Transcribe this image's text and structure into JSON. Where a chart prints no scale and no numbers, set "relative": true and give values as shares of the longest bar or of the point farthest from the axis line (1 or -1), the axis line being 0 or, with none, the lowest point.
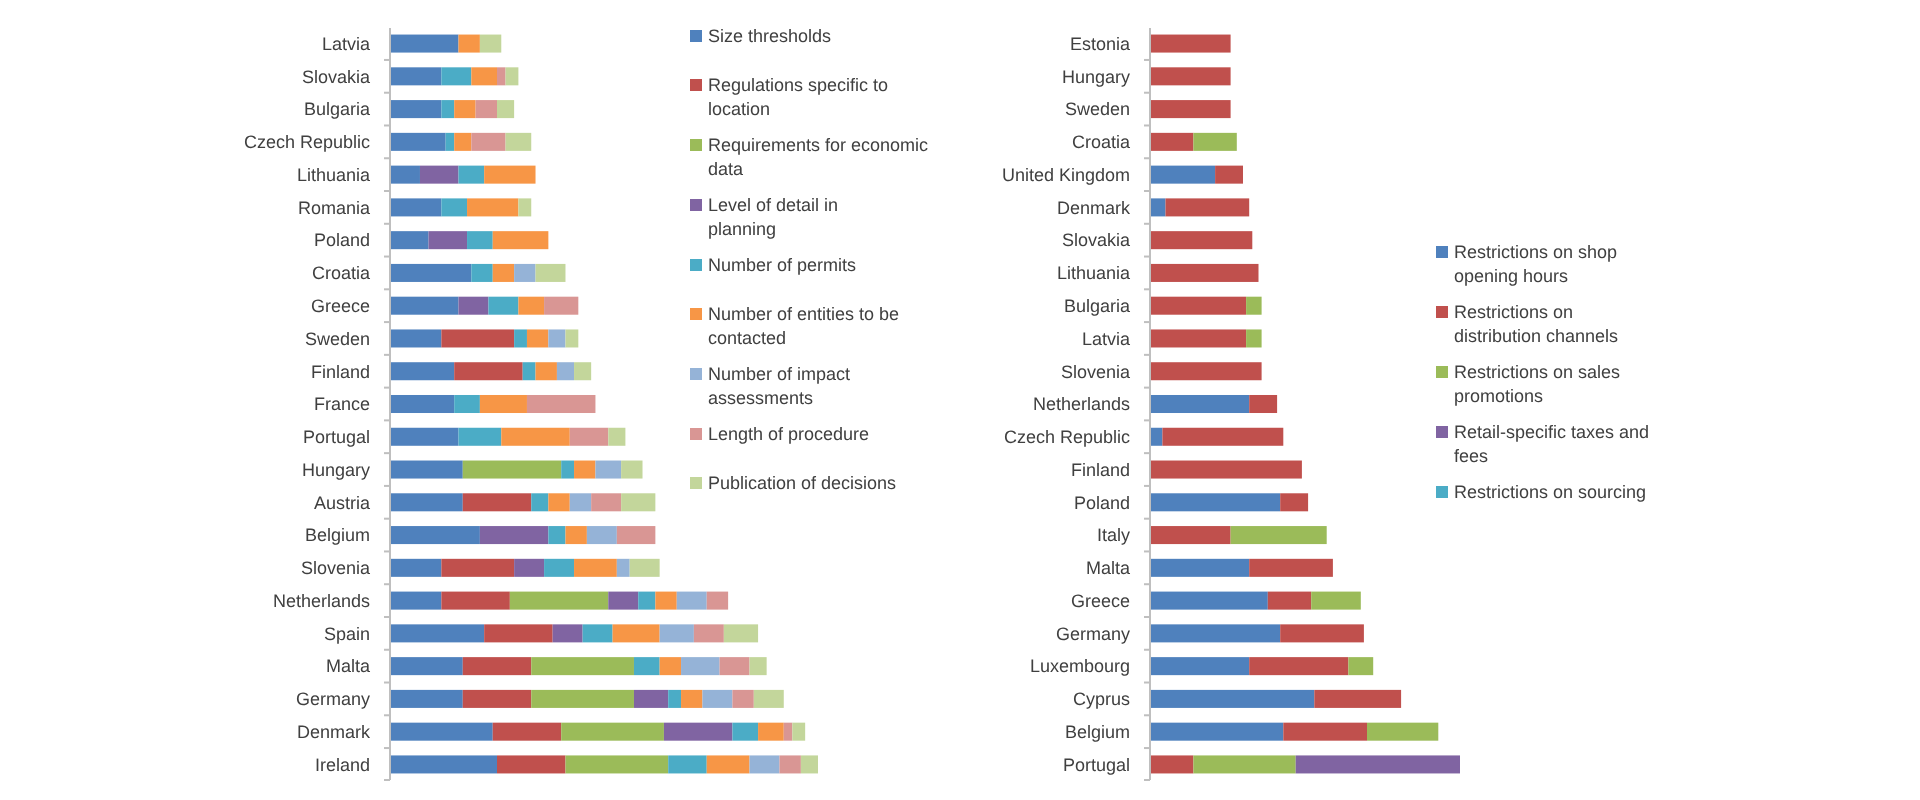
{
  "chart_data": [
    {
      "type": "bar",
      "orientation": "horizontal",
      "stacked": true,
      "relative": true,
      "legend": "right",
      "categories": [
        "Latvia",
        "Slovakia",
        "Bulgaria",
        "Czech Republic",
        "Lithuania",
        "Romania",
        "Poland",
        "Croatia",
        "Greece",
        "Sweden",
        "Finland",
        "France",
        "Portugal",
        "Hungary",
        "Austria",
        "Belgium",
        "Slovenia",
        "Netherlands",
        "Spain",
        "Malta",
        "Germany",
        "Denmark",
        "Ireland"
      ],
      "series": [
        {
          "name": "Size thresholds",
          "color": "#4f81bd",
          "values": [
            0.16,
            0.12,
            0.12,
            0.13,
            0.07,
            0.12,
            0.09,
            0.19,
            0.16,
            0.12,
            0.15,
            0.15,
            0.16,
            0.17,
            0.17,
            0.21,
            0.12,
            0.12,
            0.22,
            0.17,
            0.17,
            0.24,
            0.25
          ]
        },
        {
          "name": "Regulations specific to location",
          "color": "#c0504d",
          "values": [
            null,
            null,
            null,
            null,
            null,
            null,
            null,
            null,
            null,
            0.17,
            0.16,
            null,
            null,
            null,
            0.16,
            null,
            0.17,
            0.16,
            0.16,
            0.16,
            0.16,
            0.16,
            0.16
          ]
        },
        {
          "name": "Requirements for economic data",
          "color": "#9bbb59",
          "values": [
            null,
            null,
            null,
            null,
            null,
            null,
            null,
            null,
            null,
            null,
            null,
            null,
            null,
            0.23,
            null,
            null,
            null,
            0.23,
            null,
            0.24,
            0.24,
            0.24,
            0.24
          ]
        },
        {
          "name": "Level of detail in planning",
          "color": "#8064a2",
          "values": [
            null,
            null,
            null,
            null,
            0.09,
            null,
            0.09,
            null,
            0.07,
            null,
            null,
            null,
            null,
            null,
            null,
            0.16,
            0.07,
            0.07,
            0.07,
            null,
            0.08,
            0.16,
            null
          ]
        },
        {
          "name": "Number of permits",
          "color": "#4bacc6",
          "values": [
            null,
            0.07,
            0.03,
            0.02,
            0.06,
            0.06,
            0.06,
            0.05,
            0.07,
            0.03,
            0.03,
            0.06,
            0.1,
            0.03,
            0.04,
            0.04,
            0.07,
            0.04,
            0.07,
            0.06,
            0.03,
            0.06,
            0.09
          ]
        },
        {
          "name": "Number of entities to be contacted",
          "color": "#f79646",
          "values": [
            0.05,
            0.06,
            0.05,
            0.04,
            0.12,
            0.12,
            0.13,
            0.05,
            0.06,
            0.05,
            0.05,
            0.11,
            0.16,
            0.05,
            0.05,
            0.05,
            0.1,
            0.05,
            0.11,
            0.05,
            0.05,
            0.06,
            0.1
          ]
        },
        {
          "name": "Number of impact assessments",
          "color": "#95b3d7",
          "values": [
            null,
            null,
            null,
            null,
            null,
            null,
            null,
            0.05,
            null,
            0.04,
            0.04,
            null,
            null,
            0.06,
            0.05,
            0.07,
            0.03,
            0.07,
            0.08,
            0.09,
            0.07,
            null,
            0.07
          ]
        },
        {
          "name": "Length of procedure",
          "color": "#d99694",
          "values": [
            null,
            0.02,
            0.05,
            0.08,
            null,
            null,
            null,
            null,
            0.08,
            null,
            null,
            0.16,
            0.09,
            null,
            0.07,
            0.09,
            null,
            0.05,
            0.07,
            0.07,
            0.05,
            0.02,
            0.05
          ]
        },
        {
          "name": "Publication of decisions",
          "color": "#c3d69b",
          "values": [
            0.05,
            0.03,
            0.04,
            0.06,
            null,
            0.03,
            null,
            0.07,
            null,
            0.03,
            0.04,
            null,
            0.04,
            0.05,
            0.08,
            null,
            0.07,
            null,
            0.08,
            0.04,
            0.07,
            0.03,
            0.04
          ]
        }
      ]
    },
    {
      "type": "bar",
      "orientation": "horizontal",
      "stacked": true,
      "relative": true,
      "legend": "right",
      "categories": [
        "Estonia",
        "Hungary",
        "Sweden",
        "Croatia",
        "United Kingdom",
        "Denmark",
        "Slovakia",
        "Lithuania",
        "Bulgaria",
        "Latvia",
        "Slovenia",
        "Netherlands",
        "Czech Republic",
        "Finland",
        "Poland",
        "Italy",
        "Malta",
        "Greece",
        "Germany",
        "Luxembourg",
        "Cyprus",
        "Belgium",
        "Portugal"
      ],
      "series": [
        {
          "name": "Restrictions on shop opening hours",
          "color": "#4f81bd",
          "values": [
            null,
            null,
            null,
            null,
            0.21,
            0.05,
            null,
            null,
            null,
            null,
            null,
            0.32,
            0.04,
            null,
            0.42,
            null,
            0.32,
            0.38,
            0.42,
            0.32,
            0.53,
            0.43,
            null
          ]
        },
        {
          "name": "Restrictions on distribution channels",
          "color": "#c0504d",
          "values": [
            0.26,
            0.26,
            0.26,
            0.14,
            0.09,
            0.27,
            0.33,
            0.35,
            0.31,
            0.31,
            0.36,
            0.09,
            0.39,
            0.49,
            0.09,
            0.26,
            0.27,
            0.14,
            0.27,
            0.32,
            0.28,
            0.27,
            0.14
          ]
        },
        {
          "name": "Restrictions on sales promotions",
          "color": "#9bbb59",
          "values": [
            null,
            null,
            null,
            0.14,
            null,
            null,
            null,
            null,
            0.05,
            0.05,
            null,
            null,
            null,
            null,
            null,
            0.31,
            null,
            0.16,
            null,
            0.08,
            null,
            0.23,
            0.33
          ]
        },
        {
          "name": "Retail-specific taxes and fees",
          "color": "#8064a2",
          "values": [
            null,
            null,
            null,
            null,
            null,
            null,
            null,
            null,
            null,
            null,
            null,
            null,
            null,
            null,
            null,
            null,
            null,
            null,
            null,
            null,
            null,
            null,
            0.53
          ]
        },
        {
          "name": "Restrictions on sourcing",
          "color": "#4bacc6",
          "values": [
            null,
            null,
            null,
            null,
            null,
            null,
            null,
            null,
            null,
            null,
            null,
            null,
            null,
            null,
            null,
            null,
            null,
            null,
            null,
            null,
            null,
            null,
            null
          ]
        }
      ]
    }
  ]
}
